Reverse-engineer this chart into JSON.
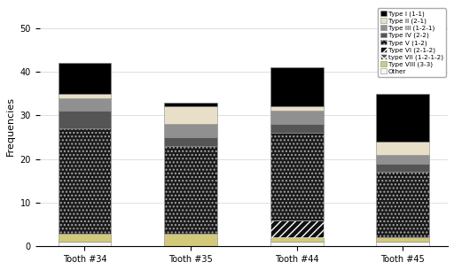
{
  "categories": [
    "Tooth #34",
    "Tooth #35",
    "Tooth #44",
    "Tooth #45"
  ],
  "series": [
    {
      "label": "Other",
      "values": [
        1,
        0,
        1,
        1
      ],
      "color": "#f5f5f5",
      "hatch": "===",
      "ec": "#888888"
    },
    {
      "label": "Type VIII (3-3)",
      "values": [
        2,
        3,
        1,
        1
      ],
      "color": "#d2c97a",
      "hatch": "",
      "ec": "#888888"
    },
    {
      "label": "type VII (1-2-1-2)",
      "values": [
        0,
        0,
        0,
        0
      ],
      "color": "#555555",
      "hatch": "xx",
      "ec": "#ffffff"
    },
    {
      "label": "Type VI (2-1-2)",
      "values": [
        0,
        0,
        4,
        0
      ],
      "color": "#111111",
      "hatch": "////",
      "ec": "#ffffff"
    },
    {
      "label": "Type V (1-2)",
      "values": [
        24,
        20,
        20,
        15
      ],
      "color": "#1a1a1a",
      "hatch": "....",
      "ec": "#aaaaaa"
    },
    {
      "label": "Type IV (2-2)",
      "values": [
        4,
        2,
        2,
        2
      ],
      "color": "#555555",
      "hatch": "",
      "ec": "#888888"
    },
    {
      "label": "Type III (1-2-1)",
      "values": [
        3,
        3,
        3,
        2
      ],
      "color": "#909090",
      "hatch": "",
      "ec": "#888888"
    },
    {
      "label": "Type II (2-1)",
      "values": [
        1,
        4,
        1,
        3
      ],
      "color": "#e8dfc8",
      "hatch": "",
      "ec": "#888888"
    },
    {
      "label": "Type I (1-1)",
      "values": [
        7,
        1,
        9,
        11
      ],
      "color": "#000000",
      "hatch": "",
      "ec": "#888888"
    }
  ],
  "ylabel": "Frequencies",
  "ylim": [
    0,
    55
  ],
  "yticks": [
    0,
    10,
    20,
    30,
    40,
    50
  ],
  "bar_width": 0.5,
  "figsize": [
    5.12,
    3.05
  ],
  "dpi": 100,
  "legend_fontsize": 5.2,
  "axis_fontsize": 8,
  "tick_fontsize": 7
}
